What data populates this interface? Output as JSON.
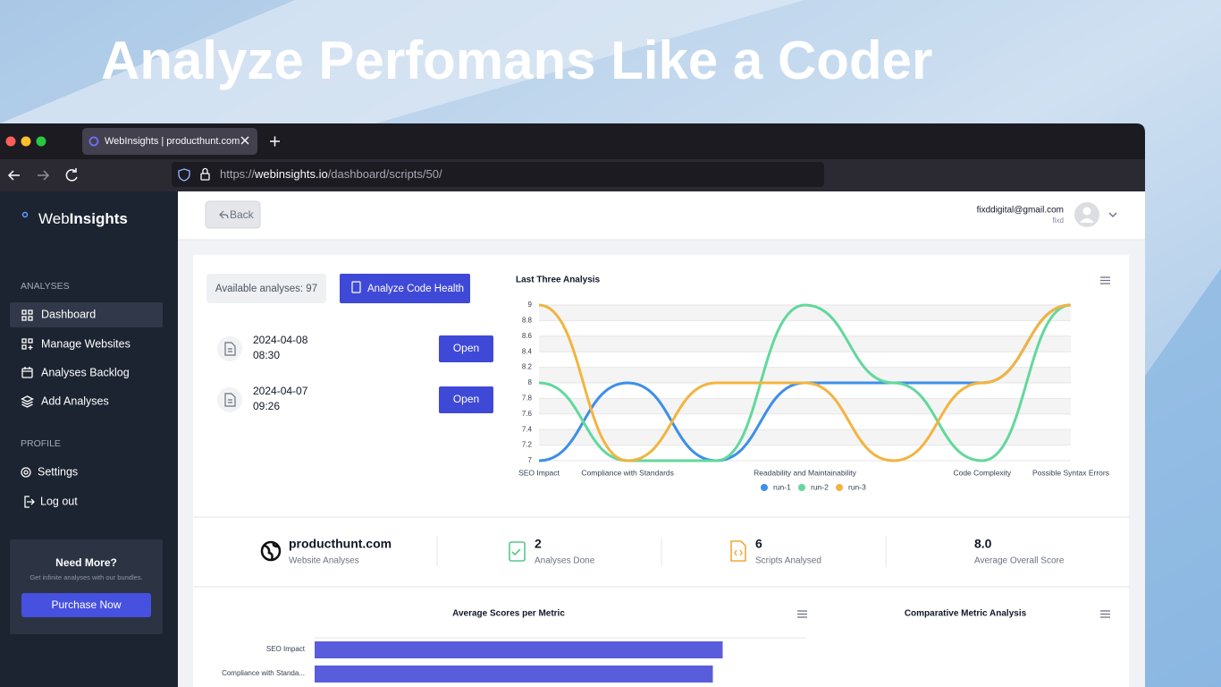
{
  "headline": "Analyze Perfomans Like a Coder",
  "browser": {
    "tab_title": "WebInsights | producthunt.com",
    "url_scheme": "https://",
    "url_host": "webinsights.io",
    "url_path": "/dashboard/scripts/50/"
  },
  "sidebar": {
    "brand_start": "Web",
    "brand_end": "Insights",
    "sections": [
      {
        "heading": "ANALYSES",
        "items": [
          "Dashboard",
          "Manage Websites",
          "Analyses Backlog",
          "Add Analyses"
        ]
      },
      {
        "heading": "PROFILE",
        "items": [
          "Settings",
          "Log out"
        ]
      }
    ],
    "promo": {
      "title": "Need More?",
      "text": "Get infinite analyses with our bundles.",
      "button": "Purchase Now"
    }
  },
  "topbar": {
    "back": "Back",
    "email": "fixddigital@gmail.com",
    "username": "fixd"
  },
  "analyses": {
    "available": "Available analyses: 97",
    "button": "Analyze Code Health",
    "items": [
      {
        "date": "2024-04-08",
        "time": "08:30",
        "action": "Open"
      },
      {
        "date": "2024-04-07",
        "time": "09:26",
        "action": "Open"
      }
    ]
  },
  "stats": [
    {
      "value": "producthunt.com",
      "label": "Website Analyses"
    },
    {
      "value": 2,
      "label": "Analyses Done"
    },
    {
      "value": 6,
      "label": "Scripts Analysed"
    },
    {
      "value": "8.0",
      "label": "Average Overall Score"
    }
  ],
  "comparative_title": "Comparative Metric Analysis",
  "chart_data": [
    {
      "type": "line",
      "title": "Last Three Analysis",
      "categories": [
        "SEO Impact",
        "Compliance with Standards",
        null,
        "Readability and Maintainability",
        null,
        "Code Complexity",
        "Possible Syntax Errors"
      ],
      "series": [
        {
          "name": "run-1",
          "color": "#3d8fe8",
          "values": [
            7,
            8,
            7,
            8,
            8,
            8,
            9
          ]
        },
        {
          "name": "run-2",
          "color": "#62d89c",
          "values": [
            8,
            7,
            7,
            9,
            8,
            7,
            9
          ]
        },
        {
          "name": "run-3",
          "color": "#f2b440",
          "values": [
            9,
            7,
            8,
            8,
            7,
            8,
            9
          ]
        }
      ],
      "ylim": [
        7,
        9
      ],
      "yticks": [
        7,
        7.2,
        7.4,
        7.6,
        7.8,
        8,
        8.2,
        8.4,
        8.6,
        8.8,
        9
      ],
      "grid": true
    },
    {
      "type": "hbar",
      "title": "Average Scores per Metric",
      "categories": [
        "SEO Impact",
        "Compliance with Standa..."
      ],
      "values": [
        8.3,
        8.1
      ],
      "color": "#5a5ddb",
      "xlim": [
        0,
        10
      ]
    }
  ]
}
